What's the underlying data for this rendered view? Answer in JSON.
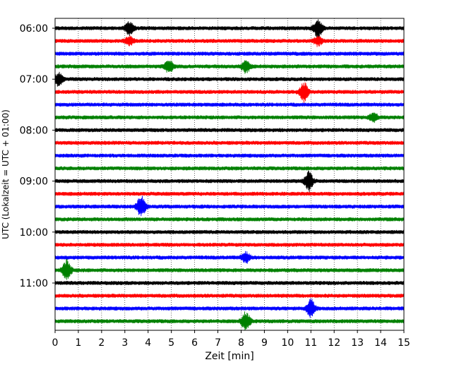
{
  "chart_data": {
    "type": "line",
    "title": "",
    "xlabel": "Zeit  [min]",
    "ylabel": "UTC (Lokalzeit = UTC + 01:00)",
    "xlim": [
      0,
      15
    ],
    "x_ticks": [
      "0",
      "1",
      "2",
      "3",
      "4",
      "5",
      "6",
      "7",
      "8",
      "9",
      "10",
      "11",
      "12",
      "13",
      "14",
      "15"
    ],
    "y_tick_labels": [
      "06:00",
      "07:00",
      "08:00",
      "09:00",
      "10:00",
      "11:00"
    ],
    "y_tick_rows": [
      0,
      4,
      8,
      12,
      16,
      20
    ],
    "grid": "vertical dotted at each minute",
    "trace_interval_min": 15,
    "trace_count": 24,
    "colors_cycle": [
      "#000000",
      "#ff0000",
      "#0000ff",
      "#008000"
    ],
    "traces": [
      {
        "start": "06:00",
        "color": "#000000",
        "events": [
          {
            "t": 3.2,
            "amp": 2.2
          },
          {
            "t": 11.3,
            "amp": 3.0
          }
        ]
      },
      {
        "start": "06:15",
        "color": "#ff0000",
        "events": [
          {
            "t": 11.3,
            "amp": 1.4
          },
          {
            "t": 3.2,
            "amp": 1.3
          }
        ]
      },
      {
        "start": "06:30",
        "color": "#0000ff",
        "events": []
      },
      {
        "start": "06:45",
        "color": "#008000",
        "events": [
          {
            "t": 4.9,
            "amp": 2.0
          },
          {
            "t": 8.2,
            "amp": 2.0
          }
        ]
      },
      {
        "start": "07:00",
        "color": "#000000",
        "events": [
          {
            "t": 0.15,
            "amp": 2.0
          }
        ]
      },
      {
        "start": "07:15",
        "color": "#ff0000",
        "events": [
          {
            "t": 10.7,
            "amp": 3.0
          }
        ]
      },
      {
        "start": "07:30",
        "color": "#0000ff",
        "events": []
      },
      {
        "start": "07:45",
        "color": "#008000",
        "events": [
          {
            "t": 13.7,
            "amp": 1.4
          }
        ]
      },
      {
        "start": "08:00",
        "color": "#000000",
        "events": []
      },
      {
        "start": "08:15",
        "color": "#ff0000",
        "events": []
      },
      {
        "start": "08:30",
        "color": "#0000ff",
        "events": []
      },
      {
        "start": "08:45",
        "color": "#008000",
        "events": []
      },
      {
        "start": "09:00",
        "color": "#000000",
        "events": [
          {
            "t": 10.9,
            "amp": 3.2
          }
        ]
      },
      {
        "start": "09:15",
        "color": "#ff0000",
        "events": []
      },
      {
        "start": "09:30",
        "color": "#0000ff",
        "events": [
          {
            "t": 3.7,
            "amp": 3.5
          }
        ]
      },
      {
        "start": "09:45",
        "color": "#008000",
        "events": []
      },
      {
        "start": "10:00",
        "color": "#000000",
        "events": []
      },
      {
        "start": "10:15",
        "color": "#ff0000",
        "events": []
      },
      {
        "start": "10:30",
        "color": "#0000ff",
        "events": [
          {
            "t": 8.2,
            "amp": 1.6
          }
        ]
      },
      {
        "start": "10:45",
        "color": "#008000",
        "events": [
          {
            "t": 0.5,
            "amp": 3.2
          }
        ]
      },
      {
        "start": "11:00",
        "color": "#000000",
        "events": []
      },
      {
        "start": "11:15",
        "color": "#ff0000",
        "events": []
      },
      {
        "start": "11:30",
        "color": "#0000ff",
        "events": [
          {
            "t": 11.0,
            "amp": 3.0
          }
        ]
      },
      {
        "start": "11:45",
        "color": "#008000",
        "events": [
          {
            "t": 8.2,
            "amp": 3.0
          }
        ]
      }
    ]
  }
}
